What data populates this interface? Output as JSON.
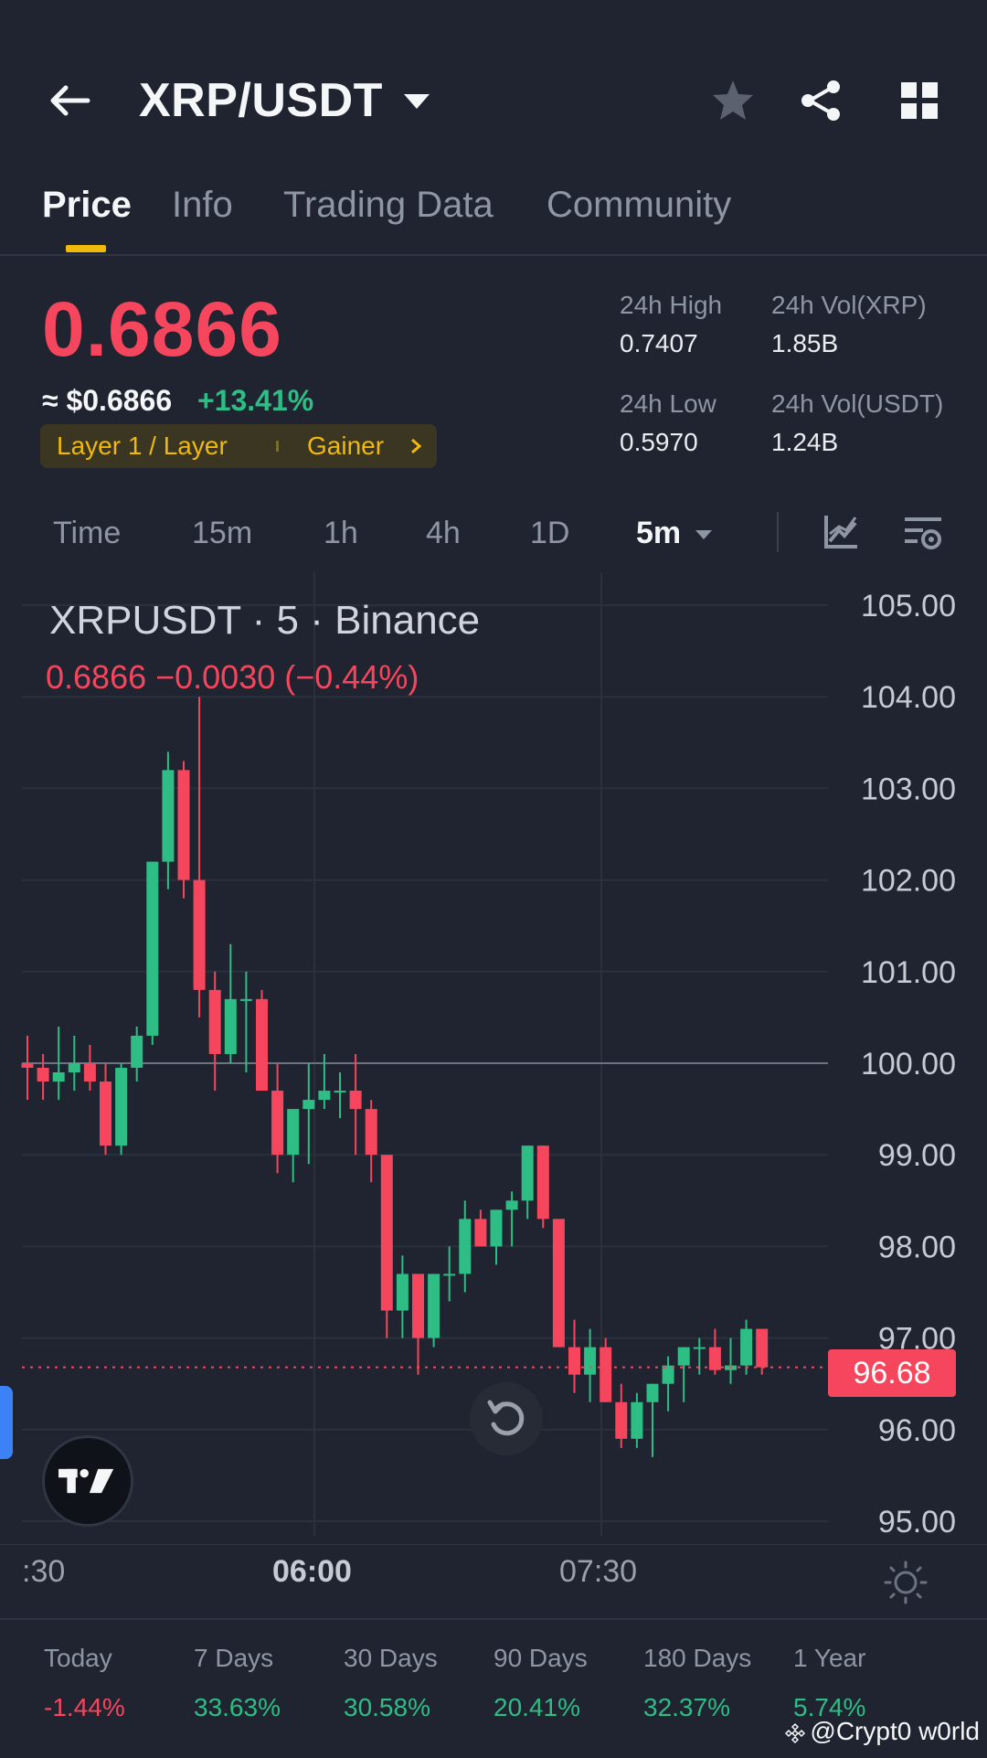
{
  "header": {
    "pair": "XRP/USDT",
    "icons": [
      "back-arrow-icon",
      "dropdown-caret-icon",
      "star-icon",
      "share-icon",
      "grid-icon"
    ]
  },
  "tabs": [
    {
      "label": "Price",
      "active": true
    },
    {
      "label": "Info",
      "active": false
    },
    {
      "label": "Trading Data",
      "active": false
    },
    {
      "label": "Community",
      "active": false
    }
  ],
  "price": {
    "last": "0.6866",
    "usd": "≈ $0.6866",
    "change": "+13.41%",
    "tag_category": "Layer 1 / Layer",
    "tag_rank": "Gainer"
  },
  "stats": {
    "high_label": "24h High",
    "high_value": "0.7407",
    "vol_xrp_label": "24h Vol(XRP)",
    "vol_xrp_value": "1.85B",
    "low_label": "24h Low",
    "low_value": "0.5970",
    "vol_usdt_label": "24h Vol(USDT)",
    "vol_usdt_value": "1.24B"
  },
  "intervals": {
    "items": [
      "Time",
      "15m",
      "1h",
      "4h",
      "1D"
    ],
    "selected": "5m"
  },
  "chart": {
    "title": "XRPUSDT · 5 · Binance",
    "subtitle": "0.6866  −0.0030 (−0.44%)",
    "last_price_tag": "96.68",
    "x_labels": [
      ":30",
      "06:00",
      "07:30"
    ]
  },
  "chart_data": {
    "type": "candlestick",
    "ylim": [
      95,
      105
    ],
    "yticks": [
      "105.00",
      "104.00",
      "103.00",
      "102.00",
      "101.00",
      "100.00",
      "99.00",
      "98.00",
      "97.00",
      "96.00",
      "95.00"
    ],
    "reference_line": 100,
    "last_price": 96.68,
    "colors": {
      "up": "#2ebd85",
      "down": "#f6465d"
    },
    "candles": [
      {
        "o": 100.0,
        "h": 100.3,
        "l": 99.6,
        "c": 99.95
      },
      {
        "o": 99.95,
        "h": 100.1,
        "l": 99.6,
        "c": 99.8
      },
      {
        "o": 99.8,
        "h": 100.4,
        "l": 99.6,
        "c": 99.9
      },
      {
        "o": 99.9,
        "h": 100.3,
        "l": 99.7,
        "c": 100.0
      },
      {
        "o": 100.0,
        "h": 100.2,
        "l": 99.7,
        "c": 99.8
      },
      {
        "o": 99.8,
        "h": 100.0,
        "l": 99.0,
        "c": 99.1
      },
      {
        "o": 99.1,
        "h": 100.0,
        "l": 99.0,
        "c": 99.95
      },
      {
        "o": 99.95,
        "h": 100.4,
        "l": 99.8,
        "c": 100.3
      },
      {
        "o": 100.3,
        "h": 102.2,
        "l": 100.2,
        "c": 102.2
      },
      {
        "o": 102.2,
        "h": 103.4,
        "l": 101.9,
        "c": 103.2
      },
      {
        "o": 103.2,
        "h": 103.3,
        "l": 101.8,
        "c": 102.0
      },
      {
        "o": 102.0,
        "h": 104.0,
        "l": 100.5,
        "c": 100.8
      },
      {
        "o": 100.8,
        "h": 101.0,
        "l": 99.7,
        "c": 100.1
      },
      {
        "o": 100.1,
        "h": 101.3,
        "l": 100.0,
        "c": 100.7
      },
      {
        "o": 100.7,
        "h": 101.0,
        "l": 99.9,
        "c": 100.7
      },
      {
        "o": 100.7,
        "h": 100.8,
        "l": 99.7,
        "c": 99.7
      },
      {
        "o": 99.7,
        "h": 100.0,
        "l": 98.8,
        "c": 99.0
      },
      {
        "o": 99.0,
        "h": 99.5,
        "l": 98.7,
        "c": 99.5
      },
      {
        "o": 99.5,
        "h": 100.0,
        "l": 98.9,
        "c": 99.6
      },
      {
        "o": 99.6,
        "h": 100.1,
        "l": 99.5,
        "c": 99.7
      },
      {
        "o": 99.7,
        "h": 99.9,
        "l": 99.4,
        "c": 99.7
      },
      {
        "o": 99.7,
        "h": 100.1,
        "l": 99.0,
        "c": 99.5
      },
      {
        "o": 99.5,
        "h": 99.6,
        "l": 98.7,
        "c": 99.0
      },
      {
        "o": 99.0,
        "h": 99.0,
        "l": 97.0,
        "c": 97.3
      },
      {
        "o": 97.3,
        "h": 97.9,
        "l": 97.0,
        "c": 97.7
      },
      {
        "o": 97.7,
        "h": 97.7,
        "l": 96.6,
        "c": 97.0
      },
      {
        "o": 97.0,
        "h": 97.7,
        "l": 96.9,
        "c": 97.7
      },
      {
        "o": 97.7,
        "h": 98.0,
        "l": 97.4,
        "c": 97.7
      },
      {
        "o": 97.7,
        "h": 98.5,
        "l": 97.5,
        "c": 98.3
      },
      {
        "o": 98.3,
        "h": 98.4,
        "l": 98.0,
        "c": 98.0
      },
      {
        "o": 98.0,
        "h": 98.4,
        "l": 97.8,
        "c": 98.4
      },
      {
        "o": 98.4,
        "h": 98.6,
        "l": 98.0,
        "c": 98.5
      },
      {
        "o": 98.5,
        "h": 99.1,
        "l": 98.3,
        "c": 99.1
      },
      {
        "o": 99.1,
        "h": 99.1,
        "l": 98.2,
        "c": 98.3
      },
      {
        "o": 98.3,
        "h": 98.3,
        "l": 96.9,
        "c": 96.9
      },
      {
        "o": 96.9,
        "h": 97.2,
        "l": 96.4,
        "c": 96.6
      },
      {
        "o": 96.6,
        "h": 97.1,
        "l": 96.3,
        "c": 96.9
      },
      {
        "o": 96.9,
        "h": 97.0,
        "l": 96.3,
        "c": 96.3
      },
      {
        "o": 96.3,
        "h": 96.5,
        "l": 95.8,
        "c": 95.9
      },
      {
        "o": 95.9,
        "h": 96.4,
        "l": 95.8,
        "c": 96.3
      },
      {
        "o": 96.3,
        "h": 96.5,
        "l": 95.7,
        "c": 96.5
      },
      {
        "o": 96.5,
        "h": 96.8,
        "l": 96.2,
        "c": 96.7
      },
      {
        "o": 96.7,
        "h": 96.9,
        "l": 96.3,
        "c": 96.9
      },
      {
        "o": 96.9,
        "h": 97.0,
        "l": 96.6,
        "c": 96.9
      },
      {
        "o": 96.9,
        "h": 97.1,
        "l": 96.6,
        "c": 96.65
      },
      {
        "o": 96.65,
        "h": 97.0,
        "l": 96.5,
        "c": 96.7
      },
      {
        "o": 96.7,
        "h": 97.2,
        "l": 96.6,
        "c": 97.1
      },
      {
        "o": 97.1,
        "h": 97.1,
        "l": 96.6,
        "c": 96.68
      }
    ]
  },
  "performance": [
    {
      "label": "Today",
      "value": "-1.44%",
      "trend": "neg"
    },
    {
      "label": "7 Days",
      "value": "33.63%",
      "trend": "pos"
    },
    {
      "label": "30 Days",
      "value": "30.58%",
      "trend": "pos"
    },
    {
      "label": "90 Days",
      "value": "20.41%",
      "trend": "pos"
    },
    {
      "label": "180 Days",
      "value": "32.37%",
      "trend": "pos"
    },
    {
      "label": "1 Year",
      "value": "5.74%",
      "trend": "pos"
    }
  ],
  "watermark": "@Crypt0 w0rld"
}
